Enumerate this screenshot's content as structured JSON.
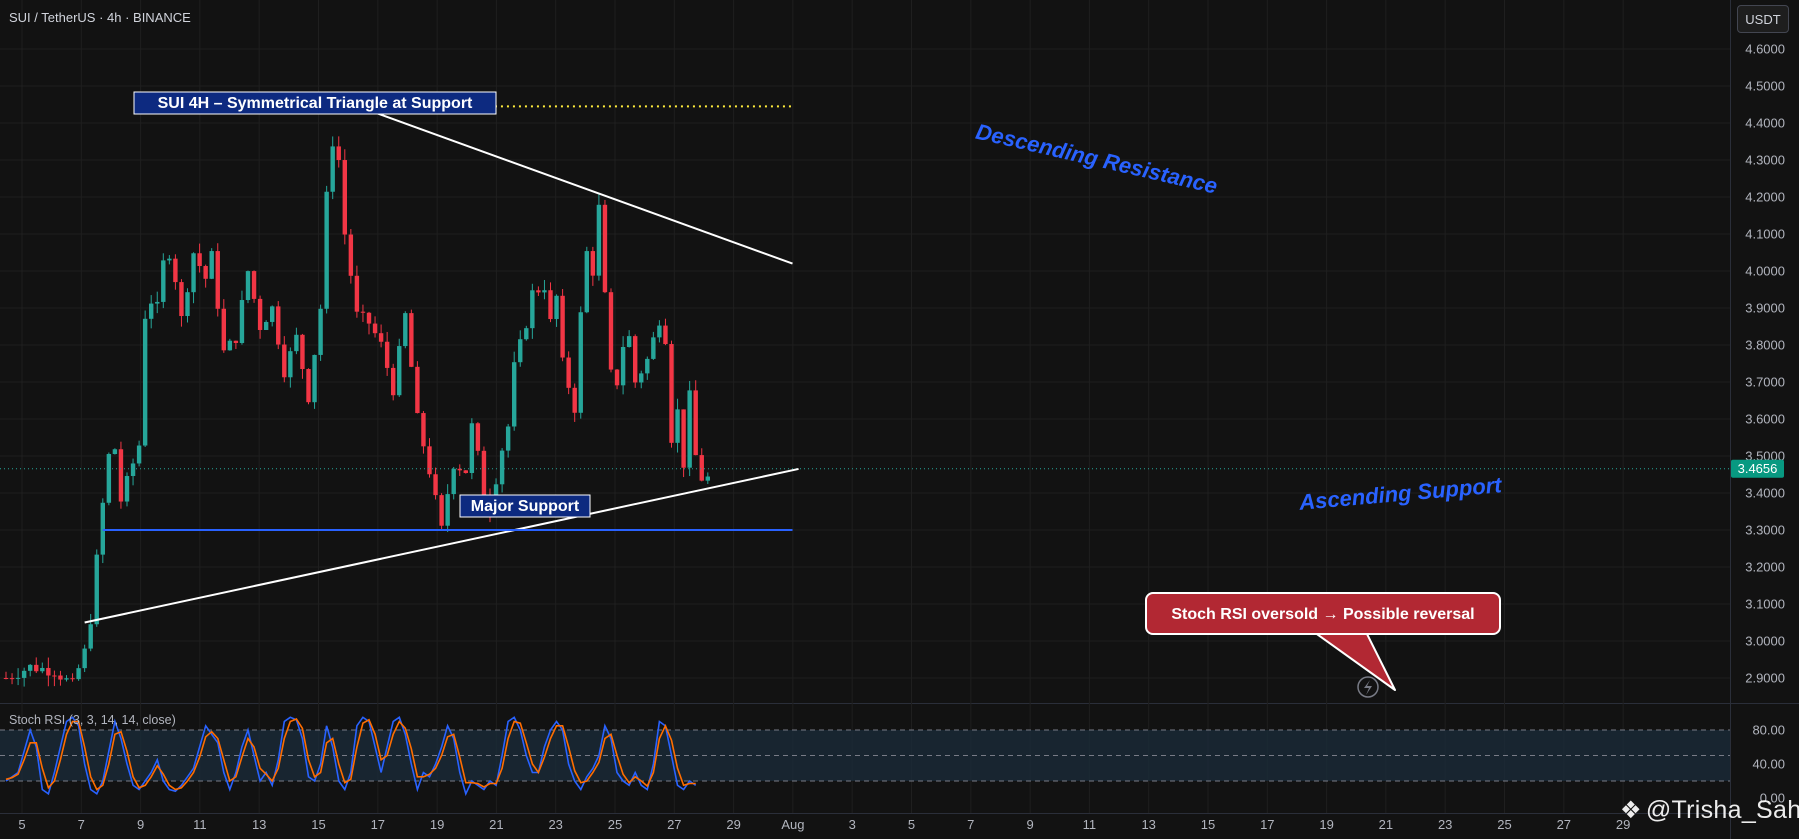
{
  "header": {
    "symbol": "SUI / TetherUS · 4h · BINANCE"
  },
  "currency_button": {
    "label": "USDT"
  },
  "indicator": {
    "label": "Stoch RSI (3, 3, 14, 14, close)"
  },
  "watermark": {
    "text": "@Trisha_Saha",
    "icon": "binance-diamond-icon"
  },
  "colors": {
    "background": "#121212",
    "up": "#26a69a",
    "down": "#f23645",
    "support_blue": "#2962ff",
    "k_line": "#2962ff",
    "d_line": "#ff6d00",
    "last_price_bg": "#089981",
    "annotation_red": "#b22833",
    "dotted_yellow": "#ffeb3b"
  },
  "chart_data": [
    {
      "type": "candlestick",
      "title": "",
      "xlabel": "",
      "ylabel": "",
      "x_tick_labels": [
        "5",
        "7",
        "9",
        "11",
        "13",
        "15",
        "17",
        "19",
        "21",
        "23",
        "25",
        "27",
        "29",
        "Aug",
        "3",
        "5",
        "7",
        "9",
        "11",
        "13",
        "15",
        "17",
        "19",
        "21",
        "23",
        "25",
        "27",
        "29"
      ],
      "y_tick_labels": [
        "2.9000",
        "3.0000",
        "3.1000",
        "3.2000",
        "3.3000",
        "3.4000",
        "3.5000",
        "3.6000",
        "3.7000",
        "3.8000",
        "3.9000",
        "4.0000",
        "4.1000",
        "4.2000",
        "4.3000",
        "4.4000",
        "4.5000",
        "4.6000"
      ],
      "ylim": [
        2.87,
        4.63
      ],
      "last_price": "3.4656",
      "grid": true,
      "path_points": [
        [
          0,
          2.9
        ],
        [
          4,
          2.93
        ],
        [
          8,
          2.92
        ],
        [
          11,
          2.88
        ],
        [
          13,
          2.97
        ],
        [
          14,
          3.06
        ],
        [
          15,
          3.22
        ],
        [
          16,
          3.37
        ],
        [
          17,
          3.5
        ],
        [
          18,
          3.52
        ],
        [
          19,
          3.38
        ],
        [
          20,
          3.43
        ],
        [
          22,
          3.53
        ],
        [
          23,
          3.88
        ],
        [
          24,
          3.92
        ],
        [
          25,
          3.9
        ],
        [
          26,
          4.02
        ],
        [
          27,
          4.05
        ],
        [
          28,
          3.98
        ],
        [
          29,
          3.87
        ],
        [
          31,
          4.05
        ],
        [
          33,
          3.98
        ],
        [
          34,
          4.04
        ],
        [
          36,
          3.78
        ],
        [
          38,
          3.82
        ],
        [
          40,
          4.0
        ],
        [
          42,
          3.85
        ],
        [
          44,
          3.9
        ],
        [
          46,
          3.73
        ],
        [
          48,
          3.82
        ],
        [
          50,
          3.66
        ],
        [
          52,
          3.9
        ],
        [
          53,
          4.2
        ],
        [
          54,
          4.35
        ],
        [
          55,
          4.3
        ],
        [
          56,
          4.1
        ],
        [
          58,
          3.88
        ],
        [
          60,
          3.86
        ],
        [
          62,
          3.8
        ],
        [
          64,
          3.68
        ],
        [
          66,
          3.88
        ],
        [
          68,
          3.6
        ],
        [
          70,
          3.46
        ],
        [
          72,
          3.3
        ],
        [
          73,
          3.4
        ],
        [
          74,
          3.48
        ],
        [
          76,
          3.46
        ],
        [
          77,
          3.58
        ],
        [
          78,
          3.5
        ],
        [
          79,
          3.4
        ],
        [
          80,
          3.36
        ],
        [
          82,
          3.52
        ],
        [
          83,
          3.58
        ],
        [
          84,
          3.74
        ],
        [
          86,
          3.86
        ],
        [
          87,
          3.94
        ],
        [
          89,
          3.96
        ],
        [
          90,
          3.86
        ],
        [
          91,
          3.93
        ],
        [
          92,
          3.75
        ],
        [
          94,
          3.63
        ],
        [
          95,
          3.88
        ],
        [
          96,
          4.05
        ],
        [
          97,
          4.0
        ],
        [
          98,
          4.17
        ],
        [
          99,
          3.93
        ],
        [
          100,
          3.72
        ],
        [
          101,
          3.7
        ],
        [
          102,
          3.8
        ],
        [
          103,
          3.82
        ],
        [
          104,
          3.7
        ],
        [
          106,
          3.76
        ],
        [
          108,
          3.87
        ],
        [
          109,
          3.82
        ],
        [
          110,
          3.55
        ],
        [
          111,
          3.62
        ],
        [
          112,
          3.48
        ],
        [
          113,
          3.66
        ],
        [
          114,
          3.5
        ],
        [
          115,
          3.44
        ]
      ],
      "annotations": {
        "title_box": "SUI 4H – Symmetrical Triangle at Support",
        "major_support_label": "Major Support",
        "descending_label": "Descending Resistance",
        "ascending_label": "Ascending Support",
        "stoch_callout": "Stoch RSI oversold → Possible reversal",
        "major_support_level": 3.3,
        "resistance_top_level": 4.445,
        "descending_line": [
          [
            4.44,
            59
          ],
          [
            4.02,
            130
          ]
        ],
        "ascending_line": [
          [
            3.05,
            13
          ],
          [
            3.465,
            131
          ]
        ]
      }
    },
    {
      "type": "line",
      "title": "",
      "y_tick_labels": [
        "80.00",
        "40.00",
        "0.00"
      ],
      "ylim": [
        0,
        100
      ],
      "bands": [
        80,
        50,
        20
      ],
      "series": [
        {
          "values": [
            20,
            25,
            30,
            55,
            80,
            60,
            10,
            5,
            30,
            60,
            90,
            95,
            85,
            40,
            10,
            5,
            20,
            55,
            90,
            70,
            40,
            15,
            10,
            20,
            30,
            45,
            20,
            10,
            8,
            15,
            25,
            35,
            60,
            85,
            75,
            65,
            30,
            10,
            30,
            60,
            80,
            50,
            20,
            30,
            15,
            45,
            90,
            95,
            92,
            70,
            25,
            20,
            40,
            85,
            60,
            20,
            10,
            30,
            85,
            95,
            90,
            60,
            30,
            60,
            90,
            95,
            75,
            40,
            10,
            30,
            25,
            40,
            60,
            85,
            70,
            30,
            5,
            20,
            15,
            10,
            20,
            15,
            50,
            90,
            95,
            80,
            50,
            30,
            30,
            60,
            80,
            90,
            80,
            40,
            20,
            10,
            25,
            35,
            50,
            85,
            70,
            30,
            20,
            15,
            30,
            15,
            10,
            40,
            90,
            85,
            50,
            15,
            10,
            20,
            15
          ]
        },
        {
          "values": [
            22,
            24,
            28,
            45,
            65,
            65,
            35,
            12,
            20,
            45,
            75,
            90,
            90,
            60,
            25,
            10,
            15,
            40,
            75,
            78,
            55,
            25,
            12,
            15,
            25,
            38,
            28,
            15,
            10,
            12,
            20,
            30,
            48,
            72,
            78,
            70,
            45,
            20,
            25,
            48,
            70,
            60,
            35,
            28,
            20,
            35,
            70,
            90,
            93,
            82,
            45,
            25,
            30,
            65,
            70,
            40,
            18,
            22,
            60,
            88,
            92,
            75,
            45,
            50,
            75,
            90,
            82,
            58,
            25,
            25,
            28,
            35,
            50,
            72,
            75,
            48,
            18,
            18,
            17,
            13,
            17,
            17,
            35,
            70,
            90,
            88,
            65,
            40,
            30,
            48,
            70,
            85,
            85,
            60,
            32,
            18,
            20,
            30,
            42,
            70,
            75,
            50,
            28,
            18,
            25,
            20,
            14,
            30,
            70,
            85,
            68,
            35,
            15,
            17,
            17
          ]
        }
      ]
    }
  ]
}
